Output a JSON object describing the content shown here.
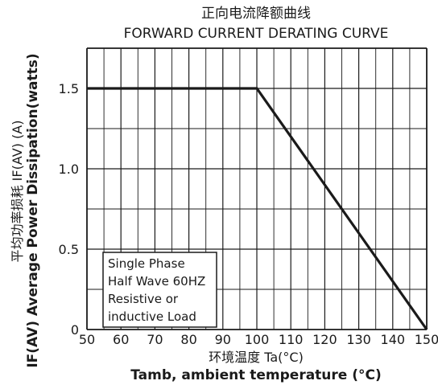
{
  "chart_data": {
    "type": "line",
    "title": "正向电流降额曲线",
    "subtitle": "FORWARD CURRENT DERATING CURVE",
    "xlabel_cn": "环境温度 Ta(°C)",
    "xlabel": "Tamb, ambient temperature (°C)",
    "ylabel_cn": "平均功率损耗 IF(AV) (A)",
    "ylabel": "IF(AV) Average Power Dissipation(watts)",
    "xlim": [
      50,
      150
    ],
    "ylim": [
      0,
      1.75
    ],
    "x_ticks": [
      "50",
      "60",
      "70",
      "80",
      "90",
      "100",
      "110",
      "120",
      "130",
      "140",
      "150"
    ],
    "y_ticks": [
      "0",
      "0.5",
      "1.0",
      "1.5"
    ],
    "grid": true,
    "series": [
      {
        "x": [
          50,
          100,
          150
        ],
        "y": [
          1.5,
          1.5,
          0
        ]
      }
    ],
    "annotation": [
      "Single Phase",
      "Half Wave 60HZ",
      "Resistive or",
      "inductive Load"
    ]
  },
  "colors": {
    "line": "#1a1a1a",
    "grid": "#1a1a1a",
    "background": "#ffffff"
  }
}
